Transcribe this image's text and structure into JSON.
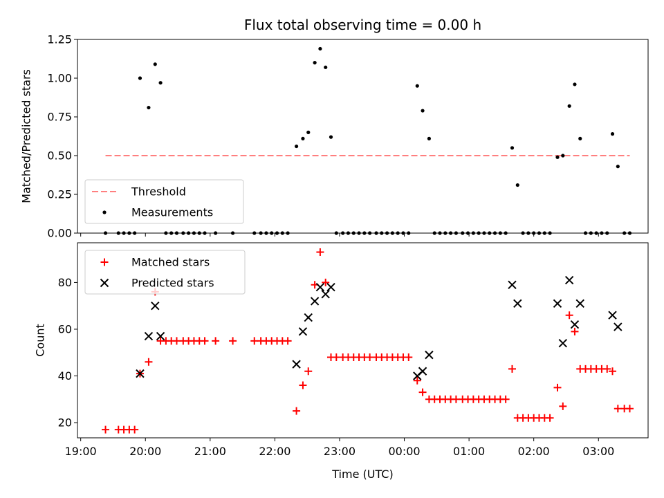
{
  "chart_data": [
    {
      "type": "scatter",
      "title": "Flux total observing time = 0.00 h",
      "ylabel": "Matched/Predicted stars",
      "xlabel": "",
      "ylim": [
        0,
        1.25
      ],
      "yticks": [
        0.0,
        0.25,
        0.5,
        0.75,
        1.0,
        1.25
      ],
      "ytick_labels": [
        "0.00",
        "0.25",
        "0.50",
        "0.75",
        "1.00",
        "1.25"
      ],
      "xticks_shown_labels": false,
      "grid": false,
      "legend_position": "lower-left",
      "series": [
        {
          "name": "Threshold",
          "kind": "dashed-line",
          "color": "#ff7f7f",
          "points": [
            [
              "19:23",
              0.5
            ],
            [
              "03:29",
              0.5
            ]
          ]
        },
        {
          "name": "Measurements",
          "kind": "dot",
          "color": "#000000",
          "points": [
            [
              "19:23",
              0.0
            ],
            [
              "19:35",
              0.0
            ],
            [
              "19:40",
              0.0
            ],
            [
              "19:45",
              0.0
            ],
            [
              "19:50",
              0.0
            ],
            [
              "19:55",
              1.0
            ],
            [
              "20:03",
              0.81
            ],
            [
              "20:09",
              1.09
            ],
            [
              "20:14",
              0.97
            ],
            [
              "20:19",
              0.0
            ],
            [
              "20:24",
              0.0
            ],
            [
              "20:29",
              0.0
            ],
            [
              "20:35",
              0.0
            ],
            [
              "20:40",
              0.0
            ],
            [
              "20:45",
              0.0
            ],
            [
              "20:50",
              0.0
            ],
            [
              "20:55",
              0.0
            ],
            [
              "21:05",
              0.0
            ],
            [
              "21:21",
              0.0
            ],
            [
              "21:41",
              0.0
            ],
            [
              "21:47",
              0.0
            ],
            [
              "21:52",
              0.0
            ],
            [
              "21:57",
              0.0
            ],
            [
              "22:02",
              0.0
            ],
            [
              "22:07",
              0.0
            ],
            [
              "22:12",
              0.0
            ],
            [
              "22:20",
              0.56
            ],
            [
              "22:26",
              0.61
            ],
            [
              "22:31",
              0.65
            ],
            [
              "22:37",
              1.1
            ],
            [
              "22:42",
              1.19
            ],
            [
              "22:47",
              1.07
            ],
            [
              "22:52",
              0.62
            ],
            [
              "22:57",
              0.0
            ],
            [
              "23:03",
              0.0
            ],
            [
              "23:08",
              0.0
            ],
            [
              "23:13",
              0.0
            ],
            [
              "23:18",
              0.0
            ],
            [
              "23:23",
              0.0
            ],
            [
              "23:28",
              0.0
            ],
            [
              "23:34",
              0.0
            ],
            [
              "23:39",
              0.0
            ],
            [
              "23:44",
              0.0
            ],
            [
              "23:49",
              0.0
            ],
            [
              "23:54",
              0.0
            ],
            [
              "23:59",
              0.0
            ],
            [
              "00:04",
              0.0
            ],
            [
              "00:12",
              0.95
            ],
            [
              "00:17",
              0.79
            ],
            [
              "00:23",
              0.61
            ],
            [
              "00:28",
              0.0
            ],
            [
              "00:33",
              0.0
            ],
            [
              "00:38",
              0.0
            ],
            [
              "00:43",
              0.0
            ],
            [
              "00:48",
              0.0
            ],
            [
              "00:54",
              0.0
            ],
            [
              "00:59",
              0.0
            ],
            [
              "01:04",
              0.0
            ],
            [
              "01:09",
              0.0
            ],
            [
              "01:14",
              0.0
            ],
            [
              "01:19",
              0.0
            ],
            [
              "01:24",
              0.0
            ],
            [
              "01:29",
              0.0
            ],
            [
              "01:34",
              0.0
            ],
            [
              "01:40",
              0.55
            ],
            [
              "01:45",
              0.31
            ],
            [
              "01:50",
              0.0
            ],
            [
              "01:55",
              0.0
            ],
            [
              "02:00",
              0.0
            ],
            [
              "02:05",
              0.0
            ],
            [
              "02:10",
              0.0
            ],
            [
              "02:15",
              0.0
            ],
            [
              "02:22",
              0.49
            ],
            [
              "02:27",
              0.5
            ],
            [
              "02:33",
              0.82
            ],
            [
              "02:38",
              0.96
            ],
            [
              "02:43",
              0.61
            ],
            [
              "02:48",
              0.0
            ],
            [
              "02:53",
              0.0
            ],
            [
              "02:58",
              0.0
            ],
            [
              "03:03",
              0.0
            ],
            [
              "03:08",
              0.0
            ],
            [
              "03:13",
              0.64
            ],
            [
              "03:18",
              0.43
            ],
            [
              "03:24",
              0.0
            ],
            [
              "03:29",
              0.0
            ]
          ]
        }
      ]
    },
    {
      "type": "scatter",
      "title": "",
      "ylabel": "Count",
      "xlabel": "Time (UTC)",
      "ylim": [
        13.5,
        97
      ],
      "yticks": [
        20,
        40,
        60,
        80
      ],
      "ytick_labels": [
        "20",
        "40",
        "60",
        "80"
      ],
      "xticks": [
        "19:00",
        "20:00",
        "21:00",
        "22:00",
        "23:00",
        "00:00",
        "01:00",
        "02:00",
        "03:00"
      ],
      "grid": false,
      "legend_position": "upper-left",
      "series": [
        {
          "name": "Matched stars",
          "kind": "plus",
          "color": "#ff0000",
          "points": [
            [
              "19:23",
              17
            ],
            [
              "19:35",
              17
            ],
            [
              "19:40",
              17
            ],
            [
              "19:45",
              17
            ],
            [
              "19:50",
              17
            ],
            [
              "19:55",
              41
            ],
            [
              "20:03",
              46
            ],
            [
              "20:09",
              76
            ],
            [
              "20:14",
              55
            ],
            [
              "20:19",
              55
            ],
            [
              "20:24",
              55
            ],
            [
              "20:29",
              55
            ],
            [
              "20:35",
              55
            ],
            [
              "20:40",
              55
            ],
            [
              "20:45",
              55
            ],
            [
              "20:50",
              55
            ],
            [
              "20:55",
              55
            ],
            [
              "21:05",
              55
            ],
            [
              "21:21",
              55
            ],
            [
              "21:41",
              55
            ],
            [
              "21:47",
              55
            ],
            [
              "21:52",
              55
            ],
            [
              "21:57",
              55
            ],
            [
              "22:02",
              55
            ],
            [
              "22:07",
              55
            ],
            [
              "22:12",
              55
            ],
            [
              "22:20",
              25
            ],
            [
              "22:26",
              36
            ],
            [
              "22:31",
              42
            ],
            [
              "22:37",
              79
            ],
            [
              "22:42",
              93
            ],
            [
              "22:47",
              80
            ],
            [
              "22:52",
              48
            ],
            [
              "22:57",
              48
            ],
            [
              "23:03",
              48
            ],
            [
              "23:08",
              48
            ],
            [
              "23:13",
              48
            ],
            [
              "23:18",
              48
            ],
            [
              "23:23",
              48
            ],
            [
              "23:28",
              48
            ],
            [
              "23:34",
              48
            ],
            [
              "23:39",
              48
            ],
            [
              "23:44",
              48
            ],
            [
              "23:49",
              48
            ],
            [
              "23:54",
              48
            ],
            [
              "23:59",
              48
            ],
            [
              "00:04",
              48
            ],
            [
              "00:12",
              38
            ],
            [
              "00:17",
              33
            ],
            [
              "00:23",
              30
            ],
            [
              "00:28",
              30
            ],
            [
              "00:33",
              30
            ],
            [
              "00:38",
              30
            ],
            [
              "00:43",
              30
            ],
            [
              "00:48",
              30
            ],
            [
              "00:54",
              30
            ],
            [
              "00:59",
              30
            ],
            [
              "01:04",
              30
            ],
            [
              "01:09",
              30
            ],
            [
              "01:14",
              30
            ],
            [
              "01:19",
              30
            ],
            [
              "01:24",
              30
            ],
            [
              "01:29",
              30
            ],
            [
              "01:34",
              30
            ],
            [
              "01:40",
              43
            ],
            [
              "01:45",
              22
            ],
            [
              "01:50",
              22
            ],
            [
              "01:55",
              22
            ],
            [
              "02:00",
              22
            ],
            [
              "02:05",
              22
            ],
            [
              "02:10",
              22
            ],
            [
              "02:15",
              22
            ],
            [
              "02:22",
              35
            ],
            [
              "02:27",
              27
            ],
            [
              "02:33",
              66
            ],
            [
              "02:38",
              59
            ],
            [
              "02:43",
              43
            ],
            [
              "02:48",
              43
            ],
            [
              "02:53",
              43
            ],
            [
              "02:58",
              43
            ],
            [
              "03:03",
              43
            ],
            [
              "03:08",
              43
            ],
            [
              "03:13",
              42
            ],
            [
              "03:18",
              26
            ],
            [
              "03:24",
              26
            ],
            [
              "03:29",
              26
            ]
          ]
        },
        {
          "name": "Predicted stars",
          "kind": "x",
          "color": "#000000",
          "points": [
            [
              "19:55",
              41
            ],
            [
              "20:03",
              57
            ],
            [
              "20:09",
              70
            ],
            [
              "20:14",
              57
            ],
            [
              "22:20",
              45
            ],
            [
              "22:26",
              59
            ],
            [
              "22:31",
              65
            ],
            [
              "22:37",
              72
            ],
            [
              "22:42",
              78
            ],
            [
              "22:47",
              75
            ],
            [
              "22:52",
              78
            ],
            [
              "00:12",
              40
            ],
            [
              "00:17",
              42
            ],
            [
              "00:23",
              49
            ],
            [
              "01:40",
              79
            ],
            [
              "01:45",
              71
            ],
            [
              "02:22",
              71
            ],
            [
              "02:27",
              54
            ],
            [
              "02:33",
              81
            ],
            [
              "02:38",
              62
            ],
            [
              "02:43",
              71
            ],
            [
              "03:13",
              66
            ],
            [
              "03:18",
              61
            ]
          ]
        }
      ]
    }
  ]
}
